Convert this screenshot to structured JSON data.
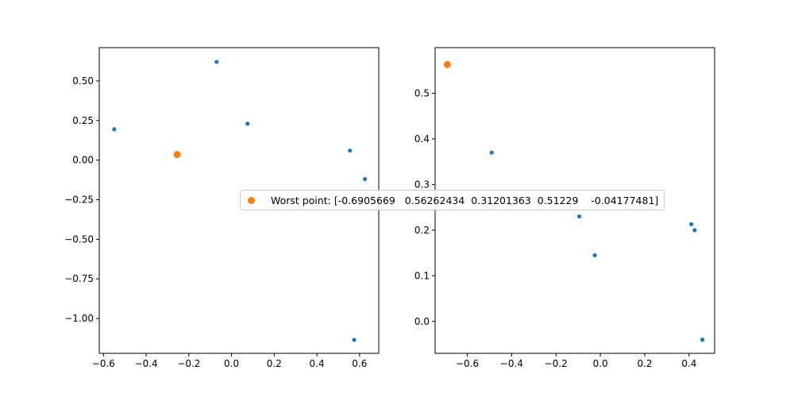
{
  "chart_data": [
    {
      "type": "scatter",
      "title": "",
      "xlabel": "",
      "ylabel": "",
      "xlim": [
        -0.62,
        0.69
      ],
      "ylim": [
        -1.22,
        0.71
      ],
      "xticks": [
        -0.6,
        -0.4,
        -0.2,
        0.0,
        0.2,
        0.4,
        0.6
      ],
      "xtick_labels": [
        "−0.6",
        "−0.4",
        "−0.2",
        "0.0",
        "0.2",
        "0.4",
        "0.6"
      ],
      "yticks": [
        -1.0,
        -0.75,
        -0.5,
        -0.25,
        0.0,
        0.25,
        0.5
      ],
      "ytick_labels": [
        "−1.00",
        "−0.75",
        "−0.50",
        "−0.25",
        "0.00",
        "0.25",
        "0.50"
      ],
      "grid": false,
      "series": [
        {
          "color": "#1f77b4",
          "x": [
            -0.55,
            -0.07,
            0.075,
            0.555,
            0.625,
            0.575
          ],
          "y": [
            0.195,
            0.62,
            0.23,
            0.06,
            -0.12,
            -1.135
          ]
        },
        {
          "color": "#ff7f0e",
          "x": [
            -0.255
          ],
          "y": [
            0.035
          ]
        }
      ]
    },
    {
      "type": "scatter",
      "title": "",
      "xlabel": "",
      "ylabel": "",
      "xlim": [
        -0.745,
        0.515
      ],
      "ylim": [
        -0.07,
        0.6
      ],
      "xticks": [
        -0.6,
        -0.4,
        -0.2,
        0.0,
        0.2,
        0.4
      ],
      "xtick_labels": [
        "−0.6",
        "−0.4",
        "−0.2",
        "0.0",
        "0.2",
        "0.4"
      ],
      "yticks": [
        0.0,
        0.1,
        0.2,
        0.3,
        0.4,
        0.5
      ],
      "ytick_labels": [
        "0.0",
        "0.1",
        "0.2",
        "0.3",
        "0.4",
        "0.5"
      ],
      "grid": false,
      "series": [
        {
          "color": "#1f77b4",
          "x": [
            -0.49,
            -0.095,
            -0.025,
            0.41,
            0.425,
            0.46
          ],
          "y": [
            0.37,
            0.23,
            0.145,
            0.213,
            0.2,
            -0.04
          ]
        },
        {
          "color": "#ff7f0e",
          "x": [
            -0.69
          ],
          "y": [
            0.563
          ]
        }
      ]
    }
  ],
  "legend": {
    "label": "Worst point: [-0.6905669   0.56262434  0.31201363  0.51229    -0.04177481]",
    "placement": "center",
    "marker_color": "#ff7f0e"
  }
}
